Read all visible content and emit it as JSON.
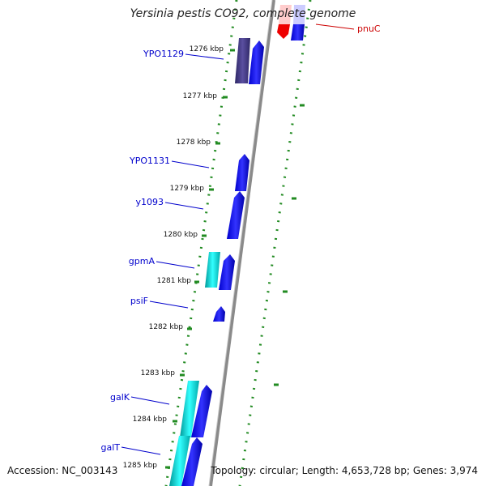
{
  "title": "Yersinia pestis CO92, complete genome",
  "footer": {
    "accession": "Accession: NC_003143",
    "summary": "Topology: circular; Length: 4,653,728 bp; Genes: 3,974"
  },
  "scale_labels": [
    "1276 kbp",
    "1277 kbp",
    "1278 kbp",
    "1279 kbp",
    "1280 kbp",
    "1281 kbp",
    "1282 kbp",
    "1283 kbp",
    "1284 kbp",
    "1285 kbp"
  ],
  "gene_labels": [
    {
      "text": "YPO1129",
      "color": "#0000cc"
    },
    {
      "text": "YPO1131",
      "color": "#0000cc"
    },
    {
      "text": "y1093",
      "color": "#0000cc"
    },
    {
      "text": "gpmA",
      "color": "#0000cc"
    },
    {
      "text": "psiF",
      "color": "#0000cc"
    },
    {
      "text": "galK",
      "color": "#0000cc"
    },
    {
      "text": "galT",
      "color": "#0000cc"
    },
    {
      "text": "pnuC",
      "color": "#cc0000"
    }
  ],
  "colors": {
    "backbone": "#808080",
    "tick_dots": "#228b22",
    "forward_gene": "#0000ee",
    "rna_like_gene": "#00cccc",
    "dark_gene": "#483d8b",
    "reverse_gene": "#ee0000"
  }
}
